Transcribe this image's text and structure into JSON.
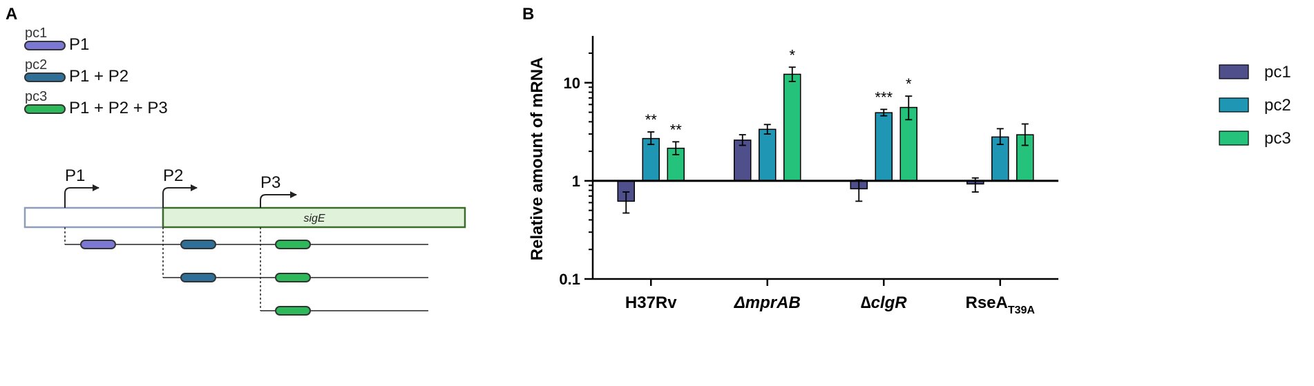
{
  "panel_a": {
    "label": "A",
    "legend": [
      {
        "probe": "pc1",
        "label": "P1",
        "color": "#7B78D4"
      },
      {
        "probe": "pc2",
        "label": "P1 + P2",
        "color": "#2F6E97"
      },
      {
        "probe": "pc3",
        "label": "P1 + P2 + P3",
        "color": "#2DB85A"
      }
    ],
    "promoters": [
      "P1",
      "P2",
      "P3"
    ],
    "gene_label": "sigE"
  },
  "panel_b": {
    "label": "B"
  },
  "chart_data": {
    "type": "bar",
    "y_scale": "log",
    "ylabel": "Relative amount of mRNA",
    "xlabel": "",
    "ylim": [
      0.1,
      30
    ],
    "yticks": [
      {
        "value": 0.1,
        "label": "0.1"
      },
      {
        "value": 1,
        "label": "1"
      },
      {
        "value": 10,
        "label": "10"
      }
    ],
    "baseline": 1,
    "categories": [
      {
        "label": "H37Rv",
        "italic": false
      },
      {
        "label": "ΔmprAB",
        "italic": true
      },
      {
        "label": "∆clgR",
        "italic": true
      },
      {
        "label": "RseA",
        "subscript": "T39A",
        "italic": false
      }
    ],
    "series": [
      {
        "name": "pc1",
        "color": "#4E4F8B",
        "values": [
          0.62,
          2.6,
          0.83,
          0.93
        ],
        "err_low": [
          0.47,
          2.3,
          0.62,
          0.77
        ],
        "err_high": [
          0.77,
          2.95,
          1.02,
          1.07
        ],
        "significance": [
          "",
          "",
          "",
          ""
        ]
      },
      {
        "name": "pc2",
        "color": "#1E96B4",
        "values": [
          2.7,
          3.35,
          4.95,
          2.8
        ],
        "err_low": [
          2.35,
          3.0,
          4.6,
          2.35
        ],
        "err_high": [
          3.15,
          3.75,
          5.35,
          3.4
        ],
        "significance": [
          "**",
          "",
          "***",
          ""
        ]
      },
      {
        "name": "pc3",
        "color": "#25C27C",
        "values": [
          2.15,
          12.2,
          5.6,
          2.95
        ],
        "err_low": [
          1.85,
          10.3,
          4.2,
          2.3
        ],
        "err_high": [
          2.5,
          14.4,
          7.3,
          3.8
        ],
        "significance": [
          "**",
          "*",
          "*",
          ""
        ]
      }
    ],
    "legend_position": "right"
  }
}
